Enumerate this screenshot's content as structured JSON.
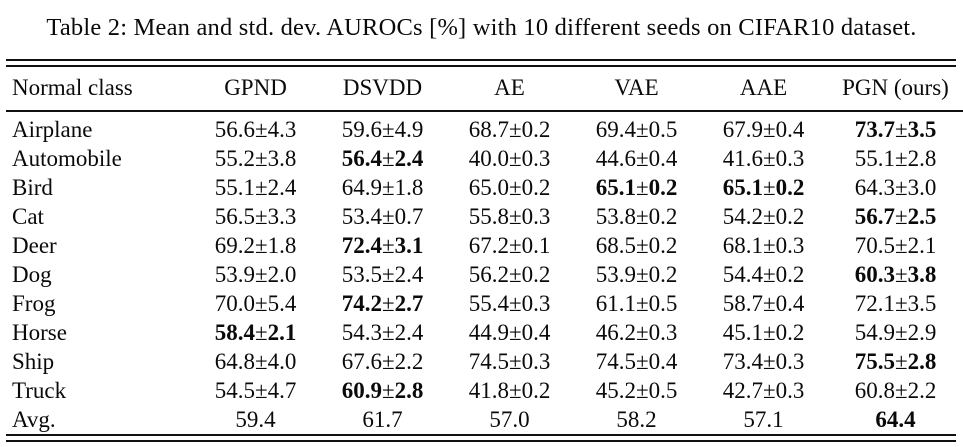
{
  "caption": "Table 2: Mean and std. dev. AUROCs [%] with 10 different seeds on CIFAR10 dataset.",
  "plus_minus": "±",
  "chart_data": {
    "type": "table",
    "title": "Mean and std. dev. AUROCs [%] with 10 different seeds on CIFAR10 dataset",
    "columns": [
      "Normal class",
      "GPND",
      "DSVDD",
      "AE",
      "VAE",
      "AAE",
      "PGN (ours)"
    ],
    "rows": [
      {
        "label": "Airplane",
        "cells": [
          {
            "mean": 56.6,
            "std": 4.3,
            "bold": false
          },
          {
            "mean": 59.6,
            "std": 4.9,
            "bold": false
          },
          {
            "mean": 68.7,
            "std": 0.2,
            "bold": false
          },
          {
            "mean": 69.4,
            "std": 0.5,
            "bold": false
          },
          {
            "mean": 67.9,
            "std": 0.4,
            "bold": false
          },
          {
            "mean": 73.7,
            "std": 3.5,
            "bold": true
          }
        ]
      },
      {
        "label": "Automobile",
        "cells": [
          {
            "mean": 55.2,
            "std": 3.8,
            "bold": false
          },
          {
            "mean": 56.4,
            "std": 2.4,
            "bold": true
          },
          {
            "mean": 40.0,
            "std": 0.3,
            "bold": false
          },
          {
            "mean": 44.6,
            "std": 0.4,
            "bold": false
          },
          {
            "mean": 41.6,
            "std": 0.3,
            "bold": false
          },
          {
            "mean": 55.1,
            "std": 2.8,
            "bold": false
          }
        ]
      },
      {
        "label": "Bird",
        "cells": [
          {
            "mean": 55.1,
            "std": 2.4,
            "bold": false
          },
          {
            "mean": 64.9,
            "std": 1.8,
            "bold": false
          },
          {
            "mean": 65.0,
            "std": 0.2,
            "bold": false
          },
          {
            "mean": 65.1,
            "std": 0.2,
            "bold": true
          },
          {
            "mean": 65.1,
            "std": 0.2,
            "bold": true
          },
          {
            "mean": 64.3,
            "std": 3.0,
            "bold": false
          }
        ]
      },
      {
        "label": "Cat",
        "cells": [
          {
            "mean": 56.5,
            "std": 3.3,
            "bold": false
          },
          {
            "mean": 53.4,
            "std": 0.7,
            "bold": false
          },
          {
            "mean": 55.8,
            "std": 0.3,
            "bold": false
          },
          {
            "mean": 53.8,
            "std": 0.2,
            "bold": false
          },
          {
            "mean": 54.2,
            "std": 0.2,
            "bold": false
          },
          {
            "mean": 56.7,
            "std": 2.5,
            "bold": true
          }
        ]
      },
      {
        "label": "Deer",
        "cells": [
          {
            "mean": 69.2,
            "std": 1.8,
            "bold": false
          },
          {
            "mean": 72.4,
            "std": 3.1,
            "bold": true
          },
          {
            "mean": 67.2,
            "std": 0.1,
            "bold": false
          },
          {
            "mean": 68.5,
            "std": 0.2,
            "bold": false
          },
          {
            "mean": 68.1,
            "std": 0.3,
            "bold": false
          },
          {
            "mean": 70.5,
            "std": 2.1,
            "bold": false
          }
        ]
      },
      {
        "label": "Dog",
        "cells": [
          {
            "mean": 53.9,
            "std": 2.0,
            "bold": false
          },
          {
            "mean": 53.5,
            "std": 2.4,
            "bold": false
          },
          {
            "mean": 56.2,
            "std": 0.2,
            "bold": false
          },
          {
            "mean": 53.9,
            "std": 0.2,
            "bold": false
          },
          {
            "mean": 54.4,
            "std": 0.2,
            "bold": false
          },
          {
            "mean": 60.3,
            "std": 3.8,
            "bold": true
          }
        ]
      },
      {
        "label": "Frog",
        "cells": [
          {
            "mean": 70.0,
            "std": 5.4,
            "bold": false
          },
          {
            "mean": 74.2,
            "std": 2.7,
            "bold": true
          },
          {
            "mean": 55.4,
            "std": 0.3,
            "bold": false
          },
          {
            "mean": 61.1,
            "std": 0.5,
            "bold": false
          },
          {
            "mean": 58.7,
            "std": 0.4,
            "bold": false
          },
          {
            "mean": 72.1,
            "std": 3.5,
            "bold": false
          }
        ]
      },
      {
        "label": "Horse",
        "cells": [
          {
            "mean": 58.4,
            "std": 2.1,
            "bold": true
          },
          {
            "mean": 54.3,
            "std": 2.4,
            "bold": false
          },
          {
            "mean": 44.9,
            "std": 0.4,
            "bold": false
          },
          {
            "mean": 46.2,
            "std": 0.3,
            "bold": false
          },
          {
            "mean": 45.1,
            "std": 0.2,
            "bold": false
          },
          {
            "mean": 54.9,
            "std": 2.9,
            "bold": false
          }
        ]
      },
      {
        "label": "Ship",
        "cells": [
          {
            "mean": 64.8,
            "std": 4.0,
            "bold": false
          },
          {
            "mean": 67.6,
            "std": 2.2,
            "bold": false
          },
          {
            "mean": 74.5,
            "std": 0.3,
            "bold": false
          },
          {
            "mean": 74.5,
            "std": 0.4,
            "bold": false
          },
          {
            "mean": 73.4,
            "std": 0.3,
            "bold": false
          },
          {
            "mean": 75.5,
            "std": 2.8,
            "bold": true
          }
        ]
      },
      {
        "label": "Truck",
        "cells": [
          {
            "mean": 54.5,
            "std": 4.7,
            "bold": false
          },
          {
            "mean": 60.9,
            "std": 2.8,
            "bold": true
          },
          {
            "mean": 41.8,
            "std": 0.2,
            "bold": false
          },
          {
            "mean": 45.2,
            "std": 0.5,
            "bold": false
          },
          {
            "mean": 42.7,
            "std": 0.3,
            "bold": false
          },
          {
            "mean": 60.8,
            "std": 2.2,
            "bold": false
          }
        ]
      },
      {
        "label": "Avg.",
        "cells": [
          {
            "mean": 59.4,
            "std": null,
            "bold": false
          },
          {
            "mean": 61.7,
            "std": null,
            "bold": false
          },
          {
            "mean": 57.0,
            "std": null,
            "bold": false
          },
          {
            "mean": 58.2,
            "std": null,
            "bold": false
          },
          {
            "mean": 57.1,
            "std": null,
            "bold": false
          },
          {
            "mean": 64.4,
            "std": null,
            "bold": true
          }
        ]
      }
    ]
  }
}
